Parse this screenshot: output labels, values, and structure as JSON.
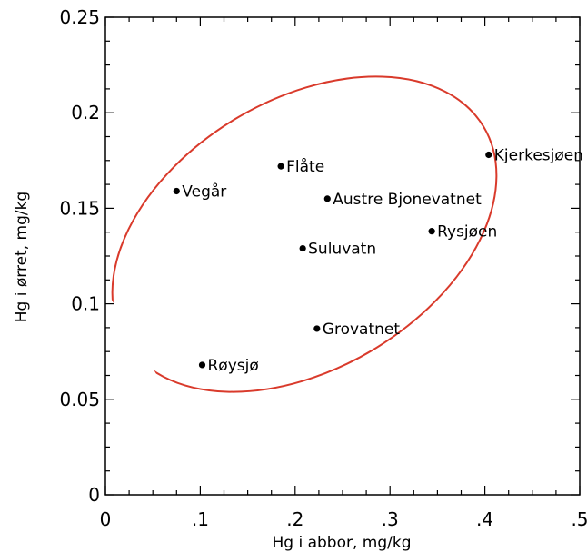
{
  "chart_data": {
    "type": "scatter",
    "title": "",
    "xlabel": "Hg i abbor, mg/kg",
    "ylabel": "Hg i ørret, mg/kg",
    "xlim": [
      0,
      0.5
    ],
    "ylim": [
      0,
      0.25
    ],
    "xticks": [
      0,
      0.1,
      0.2,
      0.3,
      0.4,
      0.5
    ],
    "xtick_labels": [
      "0",
      ".1",
      ".2",
      ".3",
      ".4",
      ".5"
    ],
    "yticks": [
      0,
      0.05,
      0.1,
      0.15,
      0.2,
      0.25
    ],
    "ytick_labels": [
      "0",
      "0.05",
      "0.1",
      "0.15",
      "0.2",
      "0.25"
    ],
    "grid": false,
    "points": [
      {
        "label": "Vegår",
        "x": 0.075,
        "y": 0.159
      },
      {
        "label": "Flåte",
        "x": 0.185,
        "y": 0.172
      },
      {
        "label": "Austre Bjonevatnet",
        "x": 0.234,
        "y": 0.155
      },
      {
        "label": "Kjerkesjøen",
        "x": 0.404,
        "y": 0.178
      },
      {
        "label": "Rysjøen",
        "x": 0.344,
        "y": 0.138
      },
      {
        "label": "Suluvatn",
        "x": 0.208,
        "y": 0.129
      },
      {
        "label": "Grovatnet",
        "x": 0.223,
        "y": 0.087
      },
      {
        "label": "Røysjø",
        "x": 0.102,
        "y": 0.068
      }
    ],
    "ellipse": {
      "color": "#d93a2b",
      "note_center": [
        0.1925,
        0.136
      ],
      "note_semi_axes": [
        0.2125,
        0.0676
      ],
      "note_angle_deg": 31
    }
  }
}
